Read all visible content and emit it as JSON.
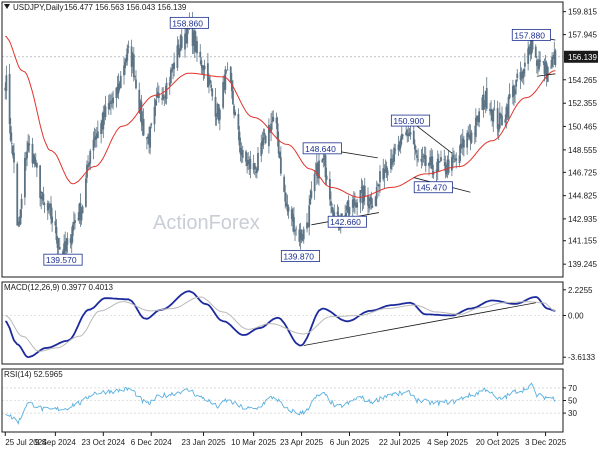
{
  "header": {
    "symbol": "USDJPY,Daily",
    "ohlc": "156.477 156.563 156.043 156.139"
  },
  "watermark": "ActionForex",
  "colors": {
    "candle": "#5b7384",
    "ma": "#e0342c",
    "macd": "#1c2a9c",
    "signal": "#b9b9b9",
    "rsi": "#5ab0e0",
    "trend": "#1a1a1a",
    "annotation": "#1b2f8f",
    "price_box": "#1a1a1a"
  },
  "chart_data": [
    {
      "type": "candlestick",
      "name": "price",
      "yticks": [
        139.245,
        141.155,
        142.935,
        144.825,
        146.725,
        148.555,
        150.465,
        152.355,
        154.265,
        157.945,
        159.815
      ],
      "ytick_labels": [
        "139.245",
        "141.155",
        "142.935",
        "144.825",
        "146.725",
        "148.555",
        "150.465",
        "152.355",
        "154.265",
        "157.945",
        "159.815"
      ],
      "ylim": [
        138.2,
        160.6
      ],
      "current_price": 156.139,
      "current_price_label": "156.139",
      "annotations": [
        {
          "text": "158.860",
          "date": "2025-01-10",
          "value": 158.86
        },
        {
          "text": "139.570",
          "date": "2024-09-16",
          "value": 139.57
        },
        {
          "text": "139.870",
          "date": "2025-04-22",
          "value": 139.87
        },
        {
          "text": "148.640",
          "date": "2025-05-12",
          "value": 148.64
        },
        {
          "text": "142.660",
          "date": "2025-06-04",
          "value": 142.66
        },
        {
          "text": "150.900",
          "date": "2025-08-01",
          "value": 150.9
        },
        {
          "text": "145.470",
          "date": "2025-08-22",
          "value": 145.47
        },
        {
          "text": "157.880",
          "date": "2025-11-20",
          "value": 157.88
        }
      ],
      "trendlines": [
        {
          "from": [
            "2025-05-12",
            148.64
          ],
          "to": [
            "2025-07-02",
            147.9
          ]
        },
        {
          "from": [
            "2025-05-02",
            142.45
          ],
          "to": [
            "2025-07-03",
            143.45
          ]
        },
        {
          "from": [
            "2025-08-01",
            150.9
          ],
          "to": [
            "2025-09-08",
            148.3
          ]
        },
        {
          "from": [
            "2025-08-04",
            146.3
          ],
          "to": [
            "2025-09-25",
            145.1
          ]
        },
        {
          "from": [
            "2025-11-20",
            157.85
          ],
          "to": [
            "2025-12-12",
            157.5
          ]
        },
        {
          "from": [
            "2025-11-25",
            154.55
          ],
          "to": [
            "2025-12-12",
            154.75
          ]
        }
      ],
      "anchors": [
        [
          "2024-07-25",
          154.2
        ],
        [
          "2024-08-02",
          147.8
        ],
        [
          "2024-08-05",
          142.0
        ],
        [
          "2024-08-15",
          148.8
        ],
        [
          "2024-09-02",
          143.5
        ],
        [
          "2024-09-16",
          140.2
        ],
        [
          "2024-10-01",
          143.5
        ],
        [
          "2024-10-15",
          149.8
        ],
        [
          "2024-11-01",
          152.5
        ],
        [
          "2024-11-15",
          156.4
        ],
        [
          "2024-12-03",
          149.5
        ],
        [
          "2024-12-15",
          153.4
        ],
        [
          "2025-01-10",
          158.3
        ],
        [
          "2025-01-20",
          155.8
        ],
        [
          "2025-02-07",
          151.5
        ],
        [
          "2025-02-12",
          154.5
        ],
        [
          "2025-03-03",
          147.5
        ],
        [
          "2025-03-10",
          147.1
        ],
        [
          "2025-03-28",
          150.8
        ],
        [
          "2025-04-11",
          143.5
        ],
        [
          "2025-04-22",
          141.5
        ],
        [
          "2025-05-12",
          147.6
        ],
        [
          "2025-05-26",
          142.8
        ],
        [
          "2025-06-04",
          143.5
        ],
        [
          "2025-06-15",
          144.8
        ],
        [
          "2025-06-25",
          144.6
        ],
        [
          "2025-07-15",
          148.0
        ],
        [
          "2025-08-01",
          150.0
        ],
        [
          "2025-08-08",
          147.5
        ],
        [
          "2025-08-22",
          147.2
        ],
        [
          "2025-09-08",
          147.3
        ],
        [
          "2025-09-25",
          149.8
        ],
        [
          "2025-10-10",
          152.7
        ],
        [
          "2025-10-20",
          150.8
        ],
        [
          "2025-11-10",
          154.2
        ],
        [
          "2025-11-20",
          157.3
        ],
        [
          "2025-11-25",
          155.8
        ],
        [
          "2025-12-05",
          155.0
        ],
        [
          "2025-12-12",
          156.1
        ]
      ],
      "ma_anchors": [
        [
          "2024-07-25",
          157.8
        ],
        [
          "2024-08-10",
          155.0
        ],
        [
          "2024-09-05",
          148.5
        ],
        [
          "2024-09-25",
          145.8
        ],
        [
          "2024-10-15",
          147.2
        ],
        [
          "2024-11-10",
          150.5
        ],
        [
          "2024-12-10",
          153.0
        ],
        [
          "2025-01-10",
          154.8
        ],
        [
          "2025-02-10",
          154.5
        ],
        [
          "2025-03-10",
          151.2
        ],
        [
          "2025-04-10",
          149.0
        ],
        [
          "2025-05-01",
          147.0
        ],
        [
          "2025-05-20",
          145.5
        ],
        [
          "2025-06-15",
          144.7
        ],
        [
          "2025-07-15",
          145.5
        ],
        [
          "2025-08-15",
          146.6
        ],
        [
          "2025-09-15",
          147.2
        ],
        [
          "2025-10-15",
          149.3
        ],
        [
          "2025-11-15",
          152.8
        ],
        [
          "2025-12-12",
          155.0
        ]
      ]
    },
    {
      "type": "line",
      "name": "macd",
      "label": "MACD(12,26,9) 0.3977 0.4013",
      "yticks": [
        2.2255,
        0.0,
        -3.6133
      ],
      "ytick_labels": [
        "2.2255",
        "0.00",
        "-3.6133"
      ],
      "ylim": [
        -4.2,
        2.9
      ],
      "trendline": {
        "from": [
          "2025-04-25",
          -2.6
        ],
        "to": [
          "2025-11-24",
          1.1
        ]
      },
      "series": [
        {
          "role": "macd",
          "anchors": [
            [
              "2024-07-25",
              -0.5
            ],
            [
              "2024-08-05",
              -2.5
            ],
            [
              "2024-08-15",
              -3.6
            ],
            [
              "2024-09-01",
              -2.8
            ],
            [
              "2024-09-20",
              -2.2
            ],
            [
              "2024-10-10",
              0.5
            ],
            [
              "2024-10-25",
              1.5
            ],
            [
              "2024-11-15",
              1.4
            ],
            [
              "2024-12-01",
              -0.3
            ],
            [
              "2024-12-15",
              0.5
            ],
            [
              "2025-01-10",
              2.1
            ],
            [
              "2025-01-25",
              1.0
            ],
            [
              "2025-02-10",
              -0.5
            ],
            [
              "2025-03-01",
              -1.7
            ],
            [
              "2025-03-15",
              -1.1
            ],
            [
              "2025-04-01",
              -0.2
            ],
            [
              "2025-04-22",
              -2.6
            ],
            [
              "2025-05-12",
              0.6
            ],
            [
              "2025-06-04",
              -0.5
            ],
            [
              "2025-06-25",
              0.4
            ],
            [
              "2025-07-15",
              0.9
            ],
            [
              "2025-08-01",
              1.1
            ],
            [
              "2025-08-15",
              0.1
            ],
            [
              "2025-09-08",
              0.0
            ],
            [
              "2025-09-25",
              0.6
            ],
            [
              "2025-10-15",
              1.3
            ],
            [
              "2025-11-05",
              1.0
            ],
            [
              "2025-11-24",
              1.6
            ],
            [
              "2025-12-05",
              0.6
            ],
            [
              "2025-12-12",
              0.4
            ]
          ]
        },
        {
          "role": "signal",
          "anchors": [
            [
              "2024-07-25",
              0.0
            ],
            [
              "2024-08-10",
              -1.8
            ],
            [
              "2024-08-25",
              -3.1
            ],
            [
              "2024-09-10",
              -2.8
            ],
            [
              "2024-10-01",
              -1.8
            ],
            [
              "2024-10-20",
              0.4
            ],
            [
              "2024-11-10",
              1.2
            ],
            [
              "2024-12-05",
              0.4
            ],
            [
              "2024-12-25",
              0.6
            ],
            [
              "2025-01-20",
              1.6
            ],
            [
              "2025-02-10",
              0.3
            ],
            [
              "2025-03-05",
              -1.2
            ],
            [
              "2025-03-25",
              -0.7
            ],
            [
              "2025-04-25",
              -1.6
            ],
            [
              "2025-05-20",
              -0.1
            ],
            [
              "2025-06-15",
              0.0
            ],
            [
              "2025-07-10",
              0.6
            ],
            [
              "2025-08-05",
              0.9
            ],
            [
              "2025-08-25",
              0.3
            ],
            [
              "2025-09-15",
              0.1
            ],
            [
              "2025-10-05",
              0.7
            ],
            [
              "2025-10-25",
              1.1
            ],
            [
              "2025-11-15",
              1.2
            ],
            [
              "2025-12-01",
              1.1
            ],
            [
              "2025-12-12",
              0.4
            ]
          ]
        }
      ]
    },
    {
      "type": "line",
      "name": "rsi",
      "label": "RSI(14) 52.5965",
      "yticks": [
        70,
        50,
        30
      ],
      "ytick_labels": [
        "70",
        "50",
        "30"
      ],
      "ylim": [
        0,
        100
      ],
      "anchors": [
        [
          "2024-07-25",
          30
        ],
        [
          "2024-08-02",
          22
        ],
        [
          "2024-08-05",
          16
        ],
        [
          "2024-08-15",
          45
        ],
        [
          "2024-09-02",
          35
        ],
        [
          "2024-09-16",
          37
        ],
        [
          "2024-10-01",
          46
        ],
        [
          "2024-10-15",
          62
        ],
        [
          "2024-11-01",
          65
        ],
        [
          "2024-11-15",
          68
        ],
        [
          "2024-12-03",
          45
        ],
        [
          "2024-12-15",
          58
        ],
        [
          "2025-01-10",
          66
        ],
        [
          "2025-01-20",
          55
        ],
        [
          "2025-02-07",
          40
        ],
        [
          "2025-02-12",
          50
        ],
        [
          "2025-03-03",
          38
        ],
        [
          "2025-03-10",
          36
        ],
        [
          "2025-03-28",
          55
        ],
        [
          "2025-04-11",
          35
        ],
        [
          "2025-04-22",
          30
        ],
        [
          "2025-05-12",
          60
        ],
        [
          "2025-05-26",
          40
        ],
        [
          "2025-06-04",
          45
        ],
        [
          "2025-06-15",
          55
        ],
        [
          "2025-06-25",
          48
        ],
        [
          "2025-07-15",
          60
        ],
        [
          "2025-08-01",
          62
        ],
        [
          "2025-08-08",
          50
        ],
        [
          "2025-08-22",
          46
        ],
        [
          "2025-09-08",
          48
        ],
        [
          "2025-09-25",
          58
        ],
        [
          "2025-10-10",
          68
        ],
        [
          "2025-10-20",
          52
        ],
        [
          "2025-11-10",
          66
        ],
        [
          "2025-11-20",
          74
        ],
        [
          "2025-11-25",
          58
        ],
        [
          "2025-12-05",
          55
        ],
        [
          "2025-12-12",
          53
        ]
      ]
    }
  ],
  "x_axis": {
    "range": [
      "2024-07-22",
      "2025-12-19"
    ],
    "ticks": [
      {
        "label": "25 Jul 2024",
        "date": "2024-07-25"
      },
      {
        "label": "9 Sep 2024",
        "date": "2024-09-09"
      },
      {
        "label": "23 Oct 2024",
        "date": "2024-10-23"
      },
      {
        "label": "6 Dec 2024",
        "date": "2024-12-06"
      },
      {
        "label": "23 Jan 2025",
        "date": "2025-01-23"
      },
      {
        "label": "10 Mar 2025",
        "date": "2025-03-10"
      },
      {
        "label": "23 Apr 2025",
        "date": "2025-04-23"
      },
      {
        "label": "6 Jun 2025",
        "date": "2025-06-06"
      },
      {
        "label": "22 Jul 2025",
        "date": "2025-07-22"
      },
      {
        "label": "4 Sep 2025",
        "date": "2025-09-04"
      },
      {
        "label": "20 Oct 2025",
        "date": "2025-10-20"
      },
      {
        "label": "3 Dec 2025",
        "date": "2025-12-03"
      }
    ]
  }
}
